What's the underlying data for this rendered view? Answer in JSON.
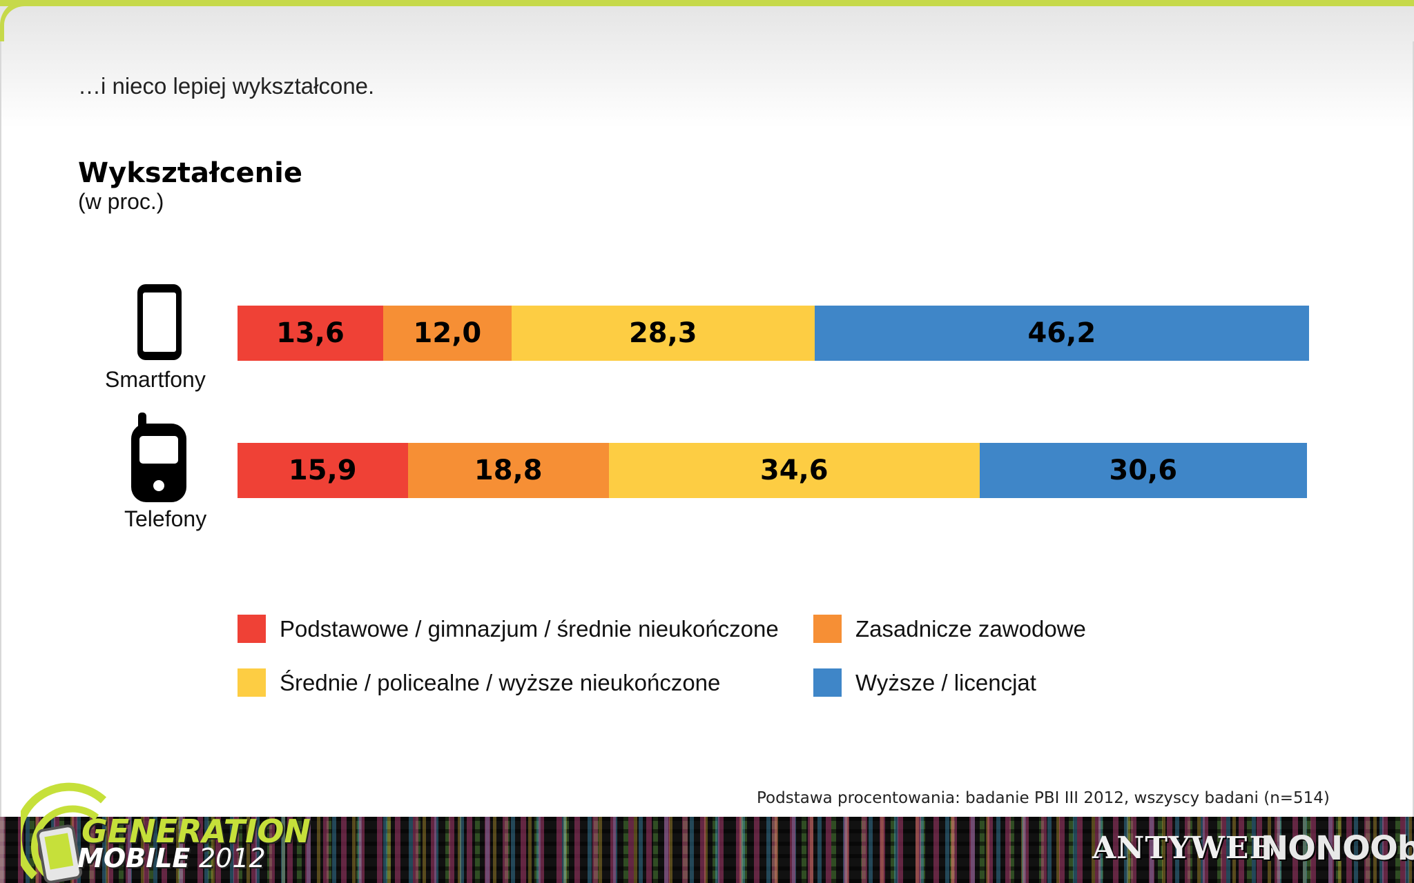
{
  "slide": {
    "subtitle": "…i nieco lepiej wykształcone.",
    "footnote": "Podstawa procentowania: badanie PBI III 2012, wszyscy badani (n=514)"
  },
  "chart_data": {
    "type": "bar",
    "orientation": "horizontal",
    "stacked": true,
    "title": "Wykształcenie",
    "unit_label": "(w proc.)",
    "categories": [
      "Smartfony",
      "Telefony"
    ],
    "series": [
      {
        "name": "Podstawowe / gimnazjum / średnie nieukończone",
        "color": "#ef4136",
        "values": [
          13.6,
          15.9
        ],
        "labels": [
          "13,6",
          "15,9"
        ]
      },
      {
        "name": "Zasadnicze zawodowe",
        "color": "#f68f35",
        "values": [
          12.0,
          18.8
        ],
        "labels": [
          "12,0",
          "18,8"
        ]
      },
      {
        "name": "Średnie / policealne / wyższe nieukończone",
        "color": "#fdcd43",
        "values": [
          28.3,
          34.6
        ],
        "labels": [
          "28,3",
          "34,6"
        ]
      },
      {
        "name": "Wyższe / licencjat",
        "color": "#3f86c8",
        "values": [
          46.2,
          30.6
        ],
        "labels": [
          "46,2",
          "30,6"
        ]
      }
    ],
    "icons": [
      "smartphone-icon",
      "feature-phone-icon"
    ],
    "legend_position": "bottom",
    "grid": false
  },
  "footer": {
    "logo_line1": "GENERATION",
    "logo_line2": "MOBILE",
    "logo_year": "2012",
    "sponsor1": "ANTYWEB",
    "sponsor2": "NONOObS",
    "accent_color": "#c6d94a"
  }
}
